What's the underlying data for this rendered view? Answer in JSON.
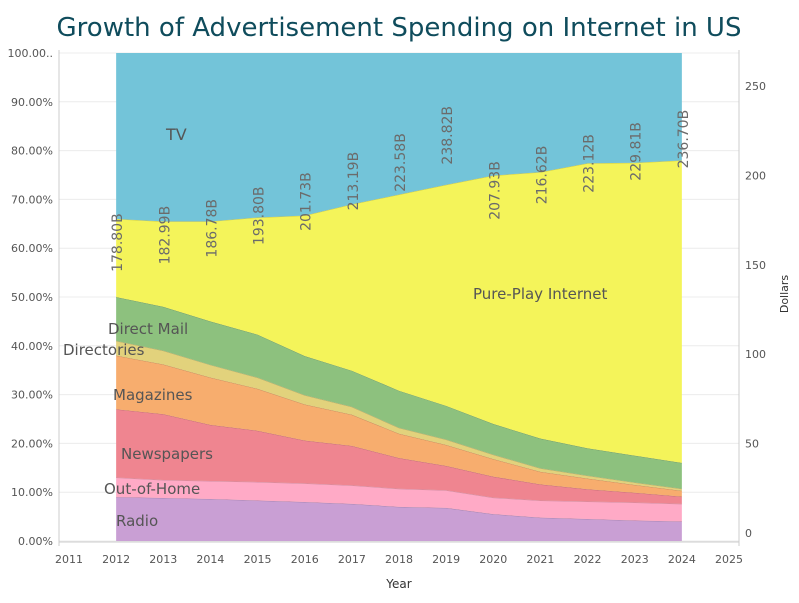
{
  "chart_data": {
    "type": "area",
    "title": "Growth of Advertisement Spending on Internet in US",
    "xlabel": "Year",
    "ylabel_right": "Dollars",
    "x_ticks": [
      "2011",
      "2012",
      "2013",
      "2014",
      "2015",
      "2016",
      "2017",
      "2018",
      "2019",
      "2020",
      "2021",
      "2022",
      "2023",
      "2024",
      "2025"
    ],
    "x": [
      2012,
      2013,
      2014,
      2015,
      2016,
      2017,
      2018,
      2019,
      2020,
      2021,
      2022,
      2023,
      2024
    ],
    "ylim_left": [
      0,
      100
    ],
    "y_ticks_left": [
      "0.00%",
      "10.00%",
      "20.00%",
      "30.00%",
      "40.00%",
      "50.00%",
      "60.00%",
      "70.00%",
      "80.00%",
      "90.00%",
      "100.00.."
    ],
    "ylim_right": [
      0,
      262
    ],
    "y_ticks_right": [
      "0",
      "50",
      "100",
      "150",
      "200",
      "250"
    ],
    "stack_order": "bottom-to-top",
    "series": [
      {
        "name": "Radio",
        "color": "#c99fd4",
        "values": [
          9.0,
          8.8,
          8.6,
          8.3,
          8.0,
          7.6,
          7.0,
          6.8,
          5.5,
          4.8,
          4.5,
          4.2,
          4.0
        ]
      },
      {
        "name": "Out-of-Home",
        "color": "#ffaac6",
        "values": [
          4.0,
          3.7,
          3.7,
          3.8,
          3.8,
          3.8,
          3.7,
          3.6,
          3.4,
          3.5,
          3.6,
          3.7,
          3.6
        ]
      },
      {
        "name": "Newspapers",
        "color": "#ef8590",
        "values": [
          14.0,
          13.5,
          11.5,
          10.5,
          8.8,
          8.1,
          6.3,
          5.0,
          4.3,
          3.3,
          2.5,
          2.0,
          1.5
        ]
      },
      {
        "name": "Magazines",
        "color": "#f7ad6e",
        "values": [
          11.0,
          10.2,
          9.7,
          8.6,
          7.4,
          6.4,
          5.0,
          4.3,
          3.6,
          2.6,
          2.2,
          1.6,
          1.2
        ]
      },
      {
        "name": "Directories",
        "color": "#e2d27c",
        "values": [
          3.0,
          2.8,
          2.6,
          2.3,
          1.9,
          1.6,
          1.2,
          1.1,
          0.9,
          0.7,
          0.6,
          0.5,
          0.4
        ]
      },
      {
        "name": "Direct Mail",
        "color": "#8dc17e",
        "values": [
          9.0,
          9.0,
          8.9,
          8.8,
          8.0,
          7.4,
          7.6,
          6.9,
          6.3,
          6.1,
          5.6,
          5.5,
          5.3
        ]
      },
      {
        "name": "Pure-Play Internet",
        "color": "#f4f45a",
        "values": [
          16.0,
          17.5,
          20.5,
          24.0,
          28.8,
          34.1,
          40.2,
          45.3,
          50.9,
          54.6,
          58.4,
          60.0,
          62.0
        ]
      },
      {
        "name": "TV",
        "color": "#73c4d9",
        "values": [
          34.0,
          34.5,
          34.5,
          33.7,
          33.3,
          31.0,
          29.0,
          27.0,
          25.1,
          24.4,
          22.6,
          22.5,
          22.0
        ]
      }
    ],
    "series_labels": [
      "TV",
      "Pure-Play Internet",
      "Direct Mail",
      "Directories",
      "Magazines",
      "Newspapers",
      "Out-of-Home",
      "Radio"
    ],
    "total_spending_labels": [
      "178.80B",
      "182.99B",
      "186.78B",
      "193.80B",
      "201.73B",
      "213.19B",
      "223.58B",
      "238.82B",
      "207.93B",
      "216.62B",
      "223.12B",
      "229.81B",
      "236.70B"
    ],
    "total_spending_values": [
      178.8,
      182.99,
      186.78,
      193.8,
      201.73,
      213.19,
      223.58,
      238.82,
      207.93,
      216.62,
      223.12,
      229.81,
      236.7
    ],
    "legend": "none",
    "grid": true
  }
}
